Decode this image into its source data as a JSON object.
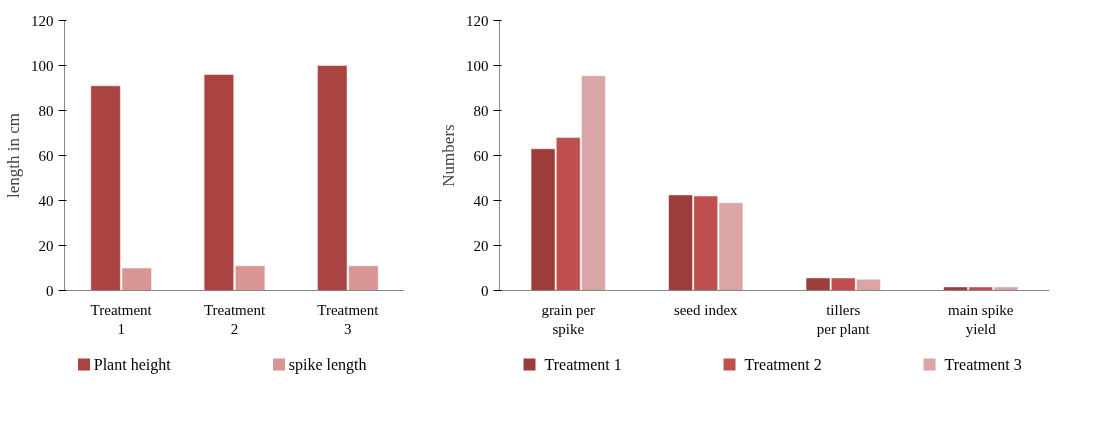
{
  "chart_data": [
    {
      "type": "bar",
      "ylabel": "length in cm",
      "categories": [
        "Treatment 1",
        "Treatment 2",
        "Treatment 3"
      ],
      "ylim": [
        0,
        120
      ],
      "yticks": [
        0,
        20,
        40,
        60,
        80,
        100,
        120
      ],
      "grid": false,
      "legend": "bottom",
      "series": [
        {
          "name": "Plant height",
          "color": "#a94443",
          "values": [
            91,
            96,
            100
          ]
        },
        {
          "name": "spike length",
          "color": "#d99594",
          "values": [
            10,
            11,
            11
          ]
        }
      ]
    },
    {
      "type": "bar",
      "ylabel": "Numbers",
      "categories": [
        "grain per spike",
        "seed index",
        "tillers per plant",
        "main spike yield"
      ],
      "ylim": [
        0,
        120
      ],
      "yticks": [
        0,
        20,
        40,
        60,
        80,
        100,
        120
      ],
      "grid": false,
      "legend": "bottom",
      "series": [
        {
          "name": "Treatment 1",
          "color": "#9c3d3b",
          "values": [
            63,
            42.5,
            5.6,
            1.6
          ]
        },
        {
          "name": "Treatment 2",
          "color": "#c0504d",
          "values": [
            68,
            42,
            5.6,
            1.6
          ]
        },
        {
          "name": "Treatment 3",
          "color": "#d9a5a5",
          "values": [
            95.5,
            39,
            5,
            1.6
          ]
        }
      ]
    }
  ]
}
